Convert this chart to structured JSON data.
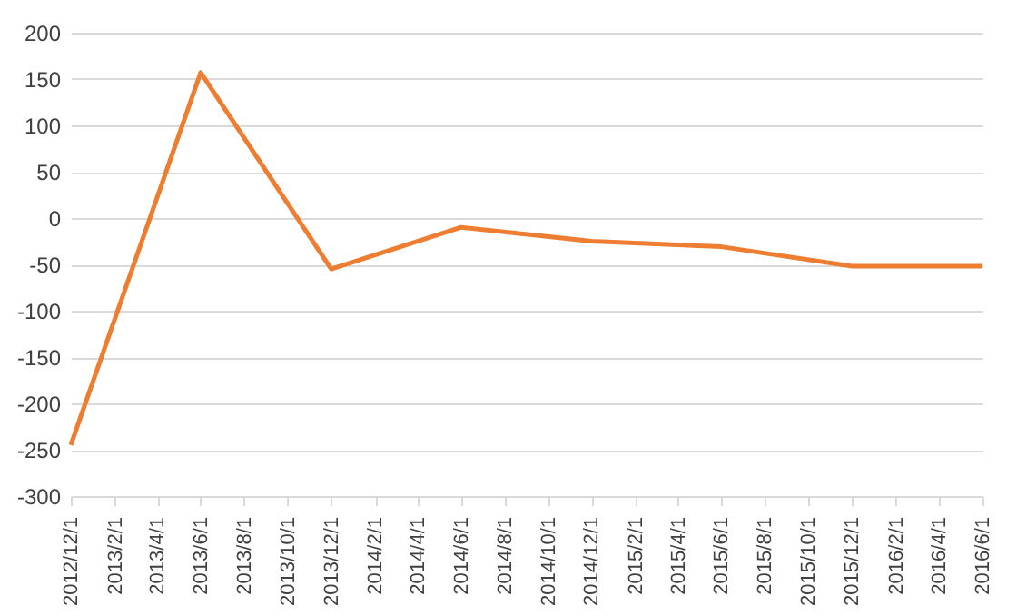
{
  "chart_data": {
    "type": "line",
    "x": [
      "2012-12-01",
      "2013-06-01",
      "2013-12-01",
      "2014-06-01",
      "2014-12-01",
      "2015-06-01",
      "2015-12-01",
      "2016-06-01"
    ],
    "series": [
      {
        "color": "#ed7d31",
        "values": [
          -245,
          157,
          -55,
          -10,
          -25,
          -31,
          -52,
          -52
        ]
      }
    ],
    "xlim": [
      "2012-12-01",
      "2016-06-01"
    ],
    "xticks": [
      {
        "value": "2012-12-01",
        "label": "2012/12/1"
      },
      {
        "value": "2013-02-01",
        "label": "2013/2/1"
      },
      {
        "value": "2013-04-01",
        "label": "2013/4/1"
      },
      {
        "value": "2013-06-01",
        "label": "2013/6/1"
      },
      {
        "value": "2013-08-01",
        "label": "2013/8/1"
      },
      {
        "value": "2013-10-01",
        "label": "2013/10/1"
      },
      {
        "value": "2013-12-01",
        "label": "2013/12/1"
      },
      {
        "value": "2014-02-01",
        "label": "2014/2/1"
      },
      {
        "value": "2014-04-01",
        "label": "2014/4/1"
      },
      {
        "value": "2014-06-01",
        "label": "2014/6/1"
      },
      {
        "value": "2014-08-01",
        "label": "2014/8/1"
      },
      {
        "value": "2014-10-01",
        "label": "2014/10/1"
      },
      {
        "value": "2014-12-01",
        "label": "2014/12/1"
      },
      {
        "value": "2015-02-01",
        "label": "2015/2/1"
      },
      {
        "value": "2015-04-01",
        "label": "2015/4/1"
      },
      {
        "value": "2015-06-01",
        "label": "2015/6/1"
      },
      {
        "value": "2015-08-01",
        "label": "2015/8/1"
      },
      {
        "value": "2015-10-01",
        "label": "2015/10/1"
      },
      {
        "value": "2015-12-01",
        "label": "2015/12/1"
      },
      {
        "value": "2016-02-01",
        "label": "2016/2/1"
      },
      {
        "value": "2016-04-01",
        "label": "2016/4/1"
      },
      {
        "value": "2016-06-01",
        "label": "2016/6/1"
      }
    ],
    "ylim": [
      -300,
      200
    ],
    "yticks": [
      -300,
      -250,
      -200,
      -150,
      -100,
      -50,
      0,
      50,
      100,
      150,
      200
    ],
    "grid": "y",
    "marker": "none",
    "line_style": "solid"
  }
}
